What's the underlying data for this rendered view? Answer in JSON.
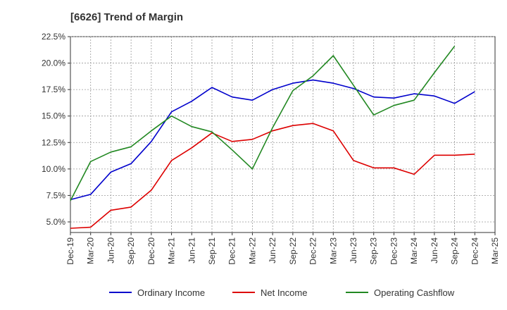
{
  "chart_data": {
    "type": "line",
    "title": "[6626]  Trend of Margin",
    "xlabel": "",
    "ylabel": "",
    "categories": [
      "Dec-19",
      "Mar-20",
      "Jun-20",
      "Sep-20",
      "Dec-20",
      "Mar-21",
      "Jun-21",
      "Sep-21",
      "Dec-21",
      "Mar-22",
      "Jun-22",
      "Sep-22",
      "Dec-22",
      "Mar-23",
      "Jun-23",
      "Sep-23",
      "Dec-23",
      "Mar-24",
      "Jun-24",
      "Sep-24",
      "Dec-24",
      "Mar-25"
    ],
    "ylim": [
      4.0,
      22.5
    ],
    "yticks": [
      "5.0%",
      "7.5%",
      "10.0%",
      "12.5%",
      "15.0%",
      "17.5%",
      "20.0%",
      "22.5%"
    ],
    "ytick_values": [
      5.0,
      7.5,
      10.0,
      12.5,
      15.0,
      17.5,
      20.0,
      22.5
    ],
    "grid": true,
    "legend_position": "bottom",
    "series": [
      {
        "name": "Ordinary Income",
        "color": "#0000cc",
        "values": [
          7.1,
          7.6,
          9.7,
          10.5,
          12.6,
          15.4,
          16.4,
          17.7,
          16.8,
          16.5,
          17.5,
          18.1,
          18.4,
          18.1,
          17.6,
          16.8,
          16.7,
          17.1,
          16.9,
          16.2,
          17.3,
          null
        ]
      },
      {
        "name": "Net Income",
        "color": "#dd0000",
        "values": [
          4.4,
          4.5,
          6.1,
          6.4,
          8.0,
          10.8,
          12.0,
          13.4,
          12.6,
          12.8,
          13.6,
          14.1,
          14.3,
          13.6,
          10.8,
          10.1,
          10.1,
          9.5,
          11.3,
          11.3,
          11.4,
          null
        ]
      },
      {
        "name": "Operating Cashflow",
        "color": "#228822",
        "values": [
          7.0,
          10.7,
          11.6,
          12.1,
          13.6,
          15.0,
          14.0,
          13.5,
          11.8,
          10.0,
          13.9,
          17.4,
          18.8,
          20.7,
          17.9,
          15.1,
          16.0,
          16.5,
          19.1,
          21.6,
          null,
          null
        ]
      }
    ]
  }
}
